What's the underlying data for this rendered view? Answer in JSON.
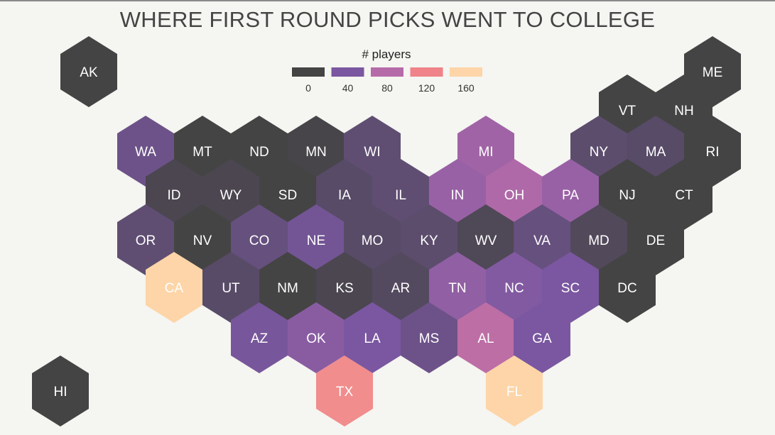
{
  "chart_data": {
    "type": "hexbin-map",
    "title": "WHERE FIRST ROUND PICKS WENT TO COLLEGE",
    "legend": {
      "title": "# players",
      "ticks": [
        0,
        40,
        80,
        120,
        160
      ],
      "colors": [
        "#444444",
        "#7a57a0",
        "#b66ba9",
        "#ef8389",
        "#fdd5a8"
      ]
    },
    "scale": {
      "min": 0,
      "max": 160
    },
    "states": [
      {
        "code": "AK",
        "value": 0
      },
      {
        "code": "ME",
        "value": 0
      },
      {
        "code": "VT",
        "value": 0
      },
      {
        "code": "NH",
        "value": 0
      },
      {
        "code": "WA",
        "value": 30
      },
      {
        "code": "MT",
        "value": 0
      },
      {
        "code": "ND",
        "value": 0
      },
      {
        "code": "MN",
        "value": 2
      },
      {
        "code": "WI",
        "value": 20
      },
      {
        "code": "MI",
        "value": 65
      },
      {
        "code": "NY",
        "value": 18
      },
      {
        "code": "MA",
        "value": 15
      },
      {
        "code": "RI",
        "value": 0
      },
      {
        "code": "ID",
        "value": 5
      },
      {
        "code": "WY",
        "value": 5
      },
      {
        "code": "SD",
        "value": 0
      },
      {
        "code": "IA",
        "value": 15
      },
      {
        "code": "IL",
        "value": 20
      },
      {
        "code": "IN",
        "value": 60
      },
      {
        "code": "OH",
        "value": 75
      },
      {
        "code": "PA",
        "value": 60
      },
      {
        "code": "NJ",
        "value": 0
      },
      {
        "code": "CT",
        "value": 0
      },
      {
        "code": "OR",
        "value": 20
      },
      {
        "code": "NV",
        "value": 0
      },
      {
        "code": "CO",
        "value": 25
      },
      {
        "code": "NE",
        "value": 35
      },
      {
        "code": "MO",
        "value": 15
      },
      {
        "code": "KY",
        "value": 18
      },
      {
        "code": "WV",
        "value": 8
      },
      {
        "code": "VA",
        "value": 25
      },
      {
        "code": "MD",
        "value": 10
      },
      {
        "code": "DE",
        "value": 0
      },
      {
        "code": "CA",
        "value": 160
      },
      {
        "code": "UT",
        "value": 15
      },
      {
        "code": "NM",
        "value": 0
      },
      {
        "code": "KS",
        "value": 5
      },
      {
        "code": "AR",
        "value": 12
      },
      {
        "code": "TN",
        "value": 55
      },
      {
        "code": "NC",
        "value": 45
      },
      {
        "code": "SC",
        "value": 40
      },
      {
        "code": "DC",
        "value": 0
      },
      {
        "code": "AZ",
        "value": 38
      },
      {
        "code": "OK",
        "value": 50
      },
      {
        "code": "LA",
        "value": 40
      },
      {
        "code": "MS",
        "value": 30
      },
      {
        "code": "AL",
        "value": 85
      },
      {
        "code": "GA",
        "value": 40
      },
      {
        "code": "HI",
        "value": 0
      },
      {
        "code": "TX",
        "value": 125
      },
      {
        "code": "FL",
        "value": 160
      }
    ]
  }
}
